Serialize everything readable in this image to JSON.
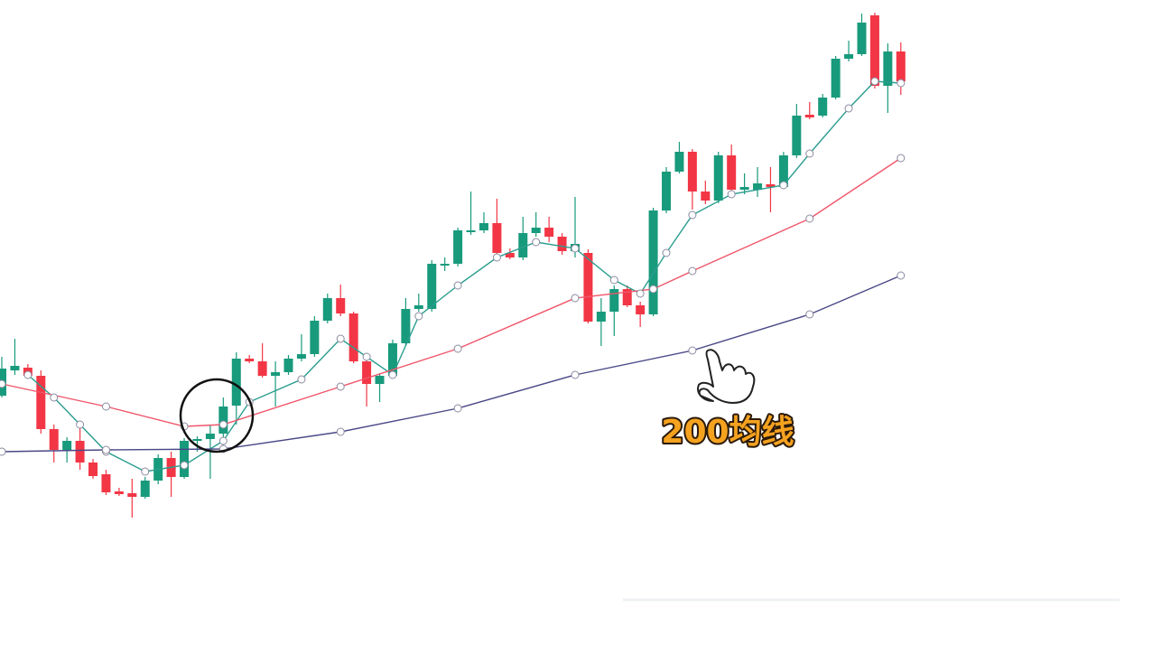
{
  "chart_data": {
    "type": "candlestick",
    "xlim": [
      0,
      88
    ],
    "ylim": [
      0,
      714
    ],
    "up_color": "#189a7c",
    "down_color": "#f23645",
    "open": [
      276,
      304,
      307,
      298,
      239,
      216,
      226,
      202,
      189,
      170,
      168,
      164,
      182,
      207,
      186,
      226,
      228,
      234,
      265,
      317,
      314,
      298,
      302,
      317,
      322,
      359,
      384,
      367,
      314,
      289,
      298,
      334,
      372,
      372,
      420,
      422,
      457,
      459,
      467,
      434,
      429,
      456,
      462,
      452,
      436,
      434,
      358,
      369,
      394,
      376,
      366,
      481,
      524,
      546,
      502,
      492,
      542,
      504,
      504,
      510,
      507,
      542,
      587,
      586,
      606,
      649,
      654,
      697,
      619,
      657
    ],
    "high": [
      319,
      339,
      311,
      304,
      244,
      230,
      244,
      206,
      194,
      174,
      184,
      186,
      211,
      214,
      229,
      231,
      244,
      274,
      324,
      321,
      334,
      314,
      321,
      344,
      364,
      389,
      399,
      369,
      319,
      301,
      338,
      384,
      389,
      426,
      429,
      462,
      502,
      479,
      494,
      439,
      474,
      479,
      474,
      456,
      496,
      438,
      384,
      398,
      398,
      380,
      484,
      529,
      557,
      549,
      514,
      546,
      554,
      522,
      529,
      529,
      546,
      599,
      601,
      610,
      652,
      669,
      699,
      700,
      666,
      667
    ],
    "low": [
      274,
      299,
      296,
      234,
      202,
      202,
      194,
      184,
      166,
      165,
      141,
      162,
      178,
      164,
      184,
      214,
      184,
      214,
      244,
      312,
      296,
      264,
      299,
      314,
      319,
      356,
      364,
      312,
      264,
      269,
      296,
      331,
      369,
      369,
      414,
      419,
      454,
      456,
      432,
      427,
      426,
      452,
      446,
      432,
      429,
      356,
      331,
      342,
      374,
      352,
      364,
      478,
      522,
      482,
      488,
      489,
      502,
      499,
      496,
      479,
      507,
      539,
      582,
      584,
      604,
      646,
      652,
      616,
      589,
      609
    ],
    "close": [
      306,
      309,
      298,
      239,
      216,
      226,
      202,
      187,
      169,
      167,
      164,
      182,
      207,
      186,
      226,
      228,
      234,
      264,
      317,
      314,
      298,
      302,
      317,
      322,
      359,
      384,
      367,
      314,
      289,
      298,
      334,
      372,
      376,
      422,
      422,
      459,
      459,
      467,
      434,
      429,
      456,
      462,
      452,
      436,
      444,
      358,
      369,
      394,
      376,
      366,
      481,
      524,
      546,
      502,
      492,
      542,
      504,
      507,
      511,
      507,
      542,
      586,
      584,
      606,
      649,
      654,
      689,
      619,
      657,
      624
    ],
    "lines": [
      {
        "color": "#2a9d8f",
        "x": [
          2,
          4,
          6,
          8,
          11,
          14,
          17,
          19,
          23,
          26,
          28,
          30,
          32,
          35,
          38,
          41,
          44,
          47,
          49,
          51,
          53,
          56,
          60,
          62,
          65,
          67,
          69
        ],
        "values": [
          299,
          274,
          244,
          214,
          192,
          199,
          226,
          269,
          294,
          339,
          319,
          299,
          364,
          398,
          429,
          446,
          439,
          404,
          389,
          434,
          476,
          499,
          509,
          544,
          594,
          624,
          622
        ]
      },
      {
        "color": "#f0566a",
        "x": [
          0,
          8,
          14,
          17,
          26,
          35,
          44,
          50,
          53,
          62,
          69
        ],
        "values": [
          289,
          264,
          242,
          244,
          286,
          328,
          384,
          394,
          414,
          472,
          539
        ]
      },
      {
        "color": "#4a4786",
        "x": [
          0,
          8,
          17,
          26,
          35,
          44,
          53,
          62,
          69
        ],
        "values": [
          214,
          216,
          217,
          236,
          262,
          299,
          326,
          366,
          409
        ]
      }
    ],
    "annotation": "200均线"
  }
}
